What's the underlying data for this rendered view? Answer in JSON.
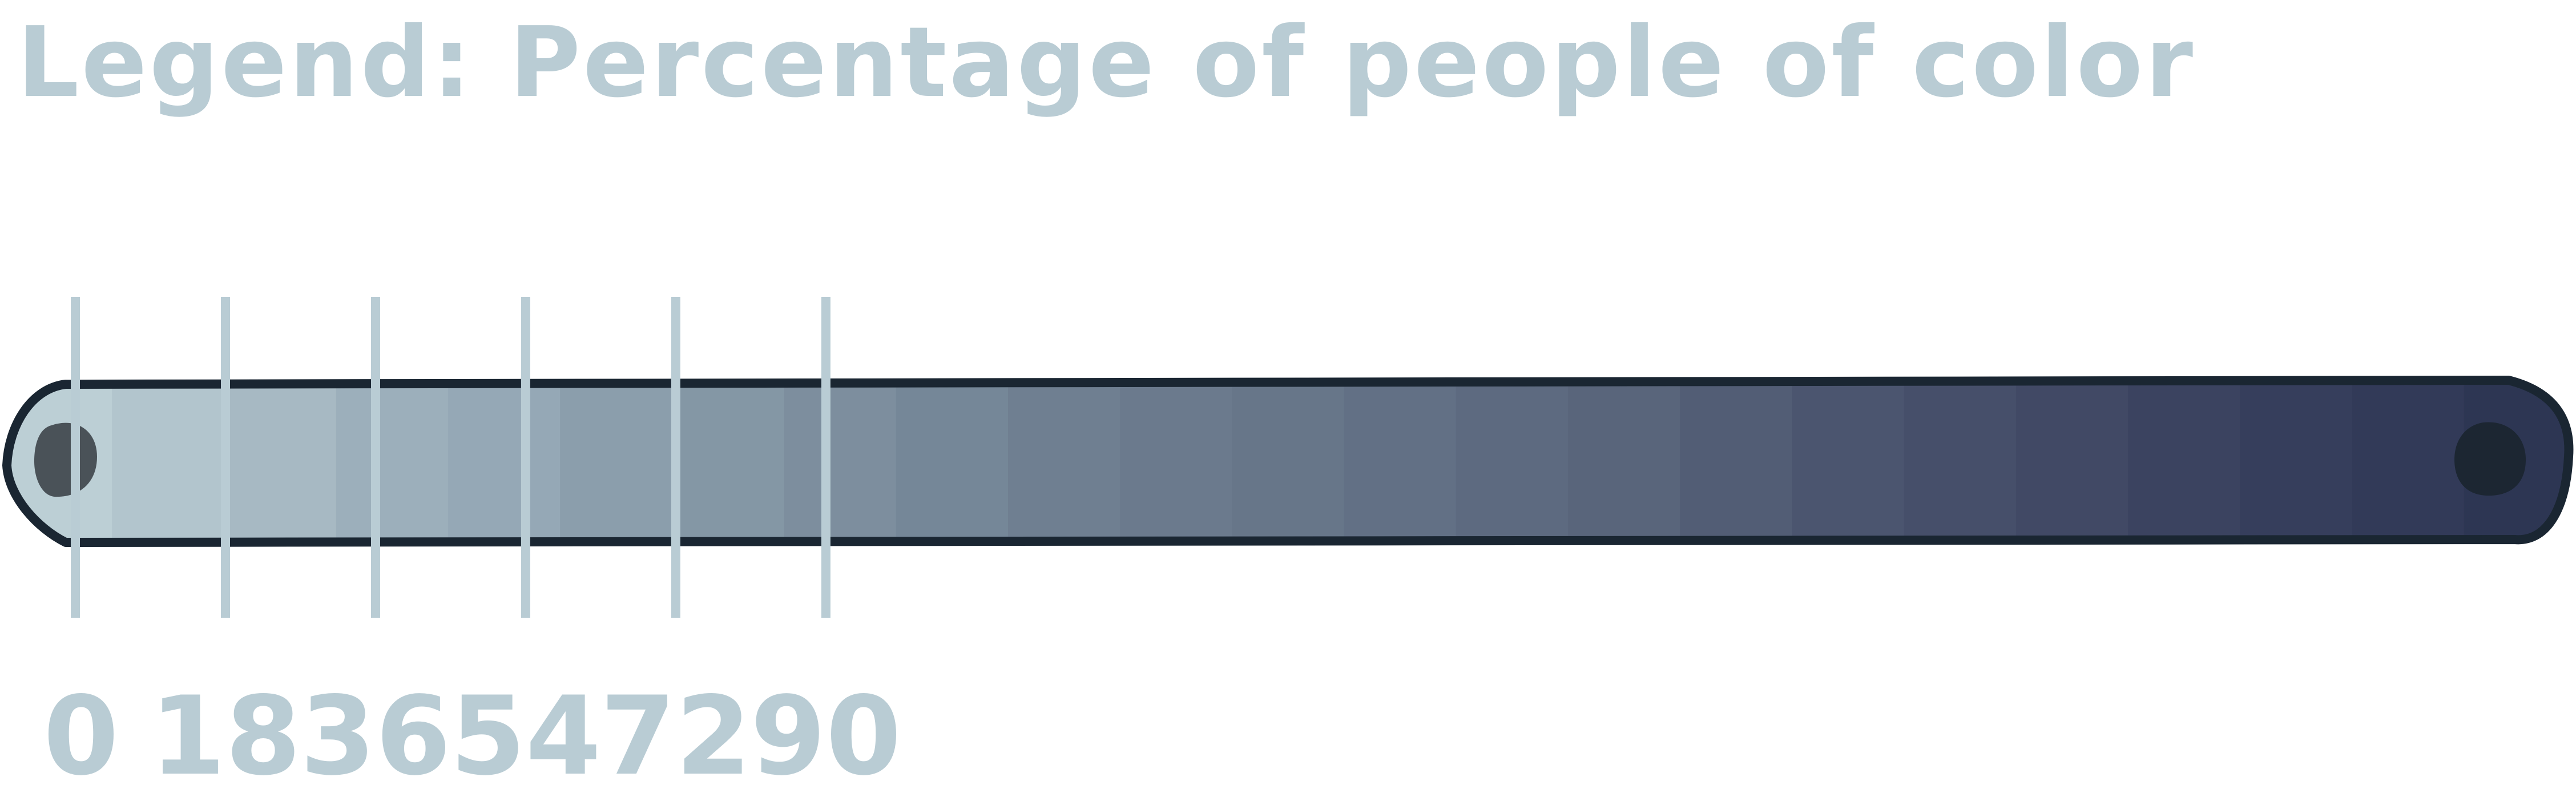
{
  "chart_data": {
    "type": "legend-colorbar",
    "title": "Legend: Percentage of people of color",
    "ticks": [
      0,
      18,
      36,
      54,
      72,
      90
    ],
    "tick_labels": [
      "0",
      "18",
      "36",
      "54",
      "72",
      "90"
    ],
    "range": [
      0,
      105
    ],
    "color_stops": [
      "#bccfd5",
      "#b2c5cd",
      "#a7b9c3",
      "#9cafbb",
      "#95a8b6",
      "#8b9eac",
      "#8497a5",
      "#7d8e9e",
      "#758798",
      "#6f7f91",
      "#6b7a8d",
      "#677689",
      "#627085",
      "#5d6a80",
      "#59657b",
      "#525d75",
      "#4b556f",
      "#464f6a",
      "#414965",
      "#3b4360",
      "#363e5c",
      "#323a58",
      "#2d3653"
    ]
  },
  "colors": {
    "text": "#b9ccd4",
    "tick": "#b9ccd4",
    "outline": "#1a2632",
    "start_dot": "#4a5258",
    "end_dot": "#1c2632"
  }
}
